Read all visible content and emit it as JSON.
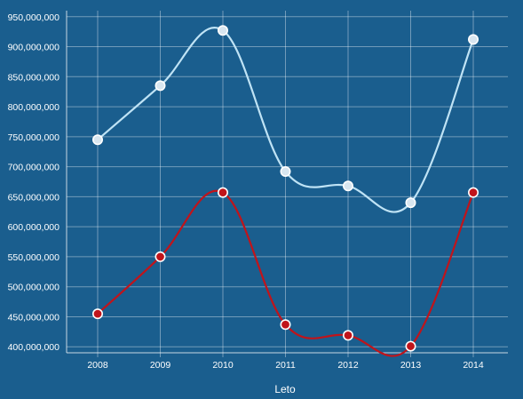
{
  "chart_data": {
    "type": "line",
    "title": "",
    "xlabel": "Leto",
    "ylabel": "",
    "categories": [
      "2008",
      "2009",
      "2010",
      "2011",
      "2012",
      "2013",
      "2014"
    ],
    "ylim": [
      390000000,
      960000000
    ],
    "yticks": [
      400000000,
      450000000,
      500000000,
      550000000,
      600000000,
      650000000,
      700000000,
      750000000,
      800000000,
      850000000,
      900000000,
      950000000
    ],
    "ytick_labels": [
      "400,000,000",
      "450,000,000",
      "500,000,000",
      "550,000,000",
      "600,000,000",
      "650,000,000",
      "700,000,000",
      "750,000,000",
      "800,000,000",
      "850,000,000",
      "900,000,000",
      "950,000,000"
    ],
    "grid": true,
    "legend": "none",
    "series": [
      {
        "values": [
          745000000,
          835000000,
          927000000,
          692000000,
          668000000,
          640000000,
          912000000
        ],
        "color": "#bfe3f5",
        "marker_fill": "#d8e6f0",
        "marker_stroke": "#ffffff"
      },
      {
        "values": [
          455000000,
          550000000,
          657000000,
          437000000,
          419000000,
          401000000,
          657000000
        ],
        "color": "#c0141b",
        "marker_fill": "#c0141b",
        "marker_stroke": "#ffffff"
      }
    ]
  }
}
